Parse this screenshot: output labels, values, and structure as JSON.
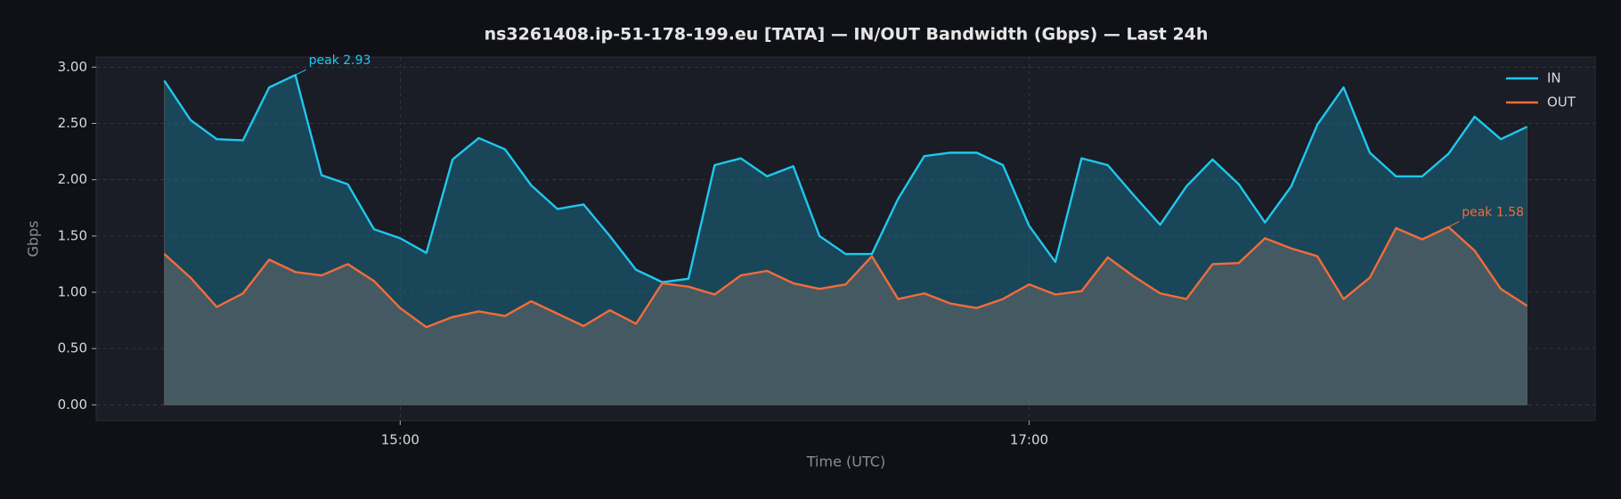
{
  "chart_data": {
    "type": "line",
    "title": "ns3261408.ip-51-178-199.eu [TATA] — IN/OUT Bandwidth (Gbps) — Last 24h",
    "xlabel": "Time (UTC)",
    "ylabel": "Gbps",
    "x": [
      "14:15",
      "14:20",
      "14:25",
      "14:30",
      "14:35",
      "14:40",
      "14:45",
      "14:50",
      "14:55",
      "15:00",
      "15:05",
      "15:10",
      "15:15",
      "15:20",
      "15:25",
      "15:30",
      "15:35",
      "15:40",
      "15:45",
      "15:50",
      "15:55",
      "16:00",
      "16:05",
      "16:10",
      "16:15",
      "16:20",
      "16:25",
      "16:30",
      "16:35",
      "16:40",
      "16:45",
      "16:50",
      "16:55",
      "17:00",
      "17:05",
      "17:10",
      "17:15",
      "17:20",
      "17:25",
      "17:30",
      "17:35",
      "17:40",
      "17:45",
      "17:50",
      "17:55",
      "18:00",
      "18:05",
      "18:10",
      "18:15",
      "18:20",
      "18:25",
      "18:30",
      "18:35"
    ],
    "series": [
      {
        "name": "IN",
        "color": "#1ec8ee",
        "fill": "#1a6a84",
        "values": [
          2.88,
          2.53,
          2.36,
          2.35,
          2.82,
          2.93,
          2.04,
          1.96,
          1.56,
          1.48,
          1.35,
          2.18,
          2.37,
          2.27,
          1.95,
          1.74,
          1.78,
          1.5,
          1.2,
          1.09,
          1.12,
          2.13,
          2.19,
          2.03,
          2.12,
          1.5,
          1.34,
          1.34,
          1.83,
          2.21,
          2.24,
          2.24,
          2.13,
          1.59,
          1.27,
          2.19,
          2.13,
          1.86,
          1.6,
          1.94,
          2.18,
          1.96,
          1.62,
          1.94,
          2.49,
          2.82,
          2.24,
          2.03,
          2.03,
          2.23,
          2.56,
          2.36,
          2.47
        ]
      },
      {
        "name": "OUT",
        "color": "#f26c3a",
        "fill": "#6a6a6a",
        "values": [
          1.34,
          1.13,
          0.87,
          0.99,
          1.29,
          1.18,
          1.15,
          1.25,
          1.1,
          0.86,
          0.69,
          0.78,
          0.83,
          0.79,
          0.92,
          0.81,
          0.7,
          0.84,
          0.72,
          1.08,
          1.05,
          0.98,
          1.15,
          1.19,
          1.08,
          1.03,
          1.07,
          1.32,
          0.94,
          0.99,
          0.9,
          0.86,
          0.94,
          1.07,
          0.98,
          1.01,
          1.31,
          1.14,
          0.99,
          0.94,
          1.25,
          1.26,
          1.48,
          1.39,
          1.32,
          0.94,
          1.13,
          1.57,
          1.47,
          1.58,
          1.37,
          1.03,
          0.88
        ]
      }
    ],
    "annotations": [
      {
        "text": "peak 2.93",
        "x": "14:40",
        "y": 2.93,
        "color": "#1ec8ee"
      },
      {
        "text": "peak 1.58",
        "x": "18:20",
        "y": 1.58,
        "color": "#f26c3a"
      }
    ],
    "xlim": [
      "14:02",
      "18:48"
    ],
    "xticks": [
      "15:00",
      "17:00"
    ],
    "ylim": [
      -0.14,
      3.09
    ],
    "yticks": [
      {
        "value": 0,
        "label": "0.00"
      },
      {
        "value": 0.5,
        "label": "0.50"
      },
      {
        "value": 1,
        "label": "1.00"
      },
      {
        "value": 1.5,
        "label": "1.50"
      },
      {
        "value": 2,
        "label": "2.00"
      },
      {
        "value": 2.5,
        "label": "2.50"
      },
      {
        "value": 3,
        "label": "3.00"
      }
    ],
    "grid": true,
    "legend": "upper right"
  }
}
